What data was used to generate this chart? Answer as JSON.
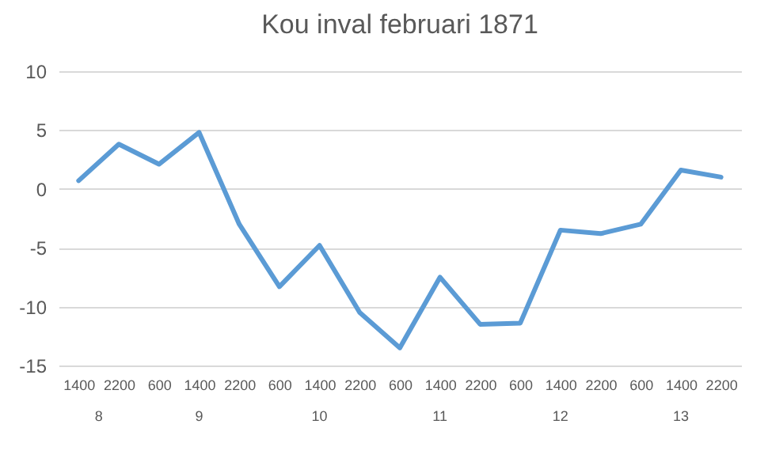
{
  "chart_data": {
    "type": "line",
    "title": "Kou inval februari 1871",
    "categories": [
      "1400",
      "2200",
      "600",
      "1400",
      "2200",
      "600",
      "1400",
      "2200",
      "600",
      "1400",
      "2200",
      "600",
      "1400",
      "2200",
      "600",
      "1400",
      "2200"
    ],
    "annotations": [
      "8",
      "9",
      "10",
      "11",
      "12",
      "13"
    ],
    "series": [
      {
        "color": "#5b9bd5",
        "values": [
          0.7,
          3.8,
          2.1,
          4.8,
          -3.0,
          -8.3,
          -4.8,
          -10.5,
          -13.5,
          -7.5,
          -11.5,
          -11.4,
          -3.5,
          -3.8,
          -3.0,
          1.6,
          1.0
        ]
      }
    ],
    "ylim": [
      -15,
      10
    ],
    "yticks": [
      -15,
      -10,
      -5,
      0,
      5,
      10
    ],
    "grid": "y"
  }
}
